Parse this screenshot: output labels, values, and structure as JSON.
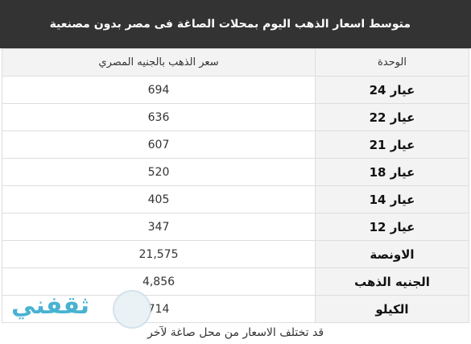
{
  "header": {
    "title": "متوسط اسعار الذهب اليوم بمحلات الصاغة فى مصر بدون مصنعية"
  },
  "table": {
    "columns": [
      "الوحدة",
      "سعر الذهب بالجنيه المصري"
    ],
    "rows": [
      [
        "عيار 24",
        "694"
      ],
      [
        "عيار 22",
        "636"
      ],
      [
        "عيار 21",
        "607"
      ],
      [
        "عيار 18",
        "520"
      ],
      [
        "عيار 14",
        "405"
      ],
      [
        "عيار 12",
        "347"
      ],
      [
        "الاونصة",
        "21,575"
      ],
      [
        "الجنيه الذهب",
        "4,856"
      ],
      [
        "الكيلو",
        "714"
      ]
    ]
  },
  "footer": {
    "note": "قد تختلف الاسعار من محل صاغة لآخر"
  },
  "watermark": {
    "text": "ثقفني"
  }
}
